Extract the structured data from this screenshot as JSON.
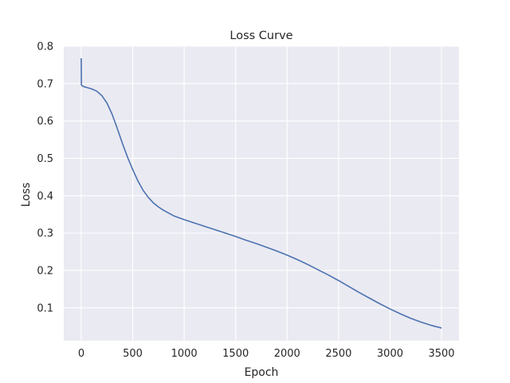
{
  "chart_data": {
    "type": "line",
    "title": "Loss Curve",
    "xlabel": "Epoch",
    "ylabel": "Loss",
    "xlim": [
      -170,
      3670
    ],
    "ylim": [
      0.012,
      0.8
    ],
    "xticks": [
      0,
      500,
      1000,
      1500,
      2000,
      2500,
      3000,
      3500
    ],
    "yticks": [
      0.1,
      0.2,
      0.3,
      0.4,
      0.5,
      0.6,
      0.7,
      0.8
    ],
    "grid": true,
    "background": "#eaeaf2",
    "grid_color": "#ffffff",
    "line_color": "#4c72b0",
    "series": [
      {
        "x": [
          0,
          1,
          2,
          5,
          10,
          25,
          50,
          100,
          150,
          200,
          250,
          300,
          350,
          400,
          450,
          500,
          550,
          600,
          650,
          700,
          750,
          800,
          900,
          1000,
          1100,
          1200,
          1300,
          1400,
          1500,
          1600,
          1700,
          1800,
          1900,
          2000,
          2100,
          2200,
          2300,
          2400,
          2500,
          2600,
          2700,
          2800,
          2900,
          3000,
          3100,
          3200,
          3300,
          3400,
          3500
        ],
        "y": [
          0.768,
          0.72,
          0.697,
          0.695,
          0.694,
          0.692,
          0.69,
          0.686,
          0.68,
          0.668,
          0.648,
          0.618,
          0.58,
          0.54,
          0.503,
          0.47,
          0.44,
          0.415,
          0.396,
          0.381,
          0.37,
          0.361,
          0.346,
          0.336,
          0.327,
          0.318,
          0.309,
          0.3,
          0.291,
          0.281,
          0.272,
          0.262,
          0.252,
          0.241,
          0.229,
          0.216,
          0.202,
          0.188,
          0.173,
          0.157,
          0.141,
          0.126,
          0.111,
          0.097,
          0.084,
          0.072,
          0.062,
          0.053,
          0.046
        ]
      }
    ]
  }
}
